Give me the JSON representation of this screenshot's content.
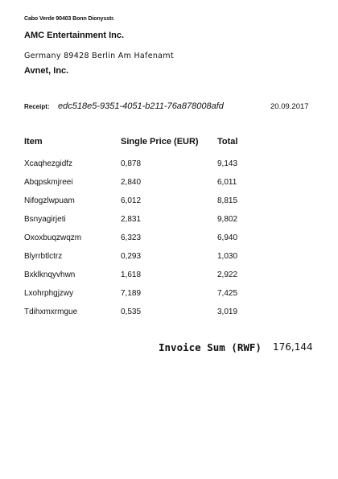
{
  "sender": {
    "address": "Cabo Verde 90403 Bonn Dionysstr.",
    "name": "AMC Entertainment Inc."
  },
  "recipient": {
    "address": "Germany 89428 Berlin Am Hafenamt",
    "name": "Avnet, Inc."
  },
  "receipt": {
    "label": "Receipt:",
    "id": "edc518e5-9351-4051-b211-76a878008afd",
    "date": "20.09.2017"
  },
  "table": {
    "headers": {
      "item": "Item",
      "price": "Single Price (EUR)",
      "total": "Total"
    },
    "rows": [
      {
        "item": "Xcaqhezgidfz",
        "price": "0,878",
        "total": "9,143"
      },
      {
        "item": "Abqpskmjreei",
        "price": "2,840",
        "total": "6,011"
      },
      {
        "item": "Nifogzlwpuam",
        "price": "6,012",
        "total": "8,815"
      },
      {
        "item": "Bsnyagirjeti",
        "price": "2,831",
        "total": "9,802"
      },
      {
        "item": "Oxoxbuqzwqzm",
        "price": "6,323",
        "total": "6,940"
      },
      {
        "item": "Blyrrbtlctrz",
        "price": "0,293",
        "total": "1,030"
      },
      {
        "item": "Bxklknqyvhwn",
        "price": "1,618",
        "total": "2,922"
      },
      {
        "item": "Lxohrphgjzwy",
        "price": "7,189",
        "total": "7,425"
      },
      {
        "item": "Tdihxmxrmgue",
        "price": "0,535",
        "total": "3,019"
      }
    ]
  },
  "summary": {
    "label": "Invoice Sum (RWF)",
    "value": "176,144"
  }
}
